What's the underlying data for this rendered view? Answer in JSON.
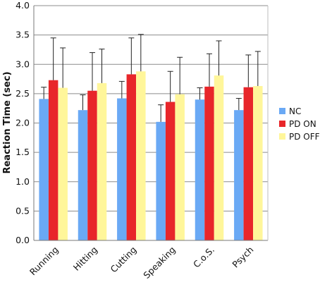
{
  "chart_data": {
    "type": "bar",
    "title": "",
    "xlabel": "",
    "ylabel": "Reaction Time (sec)",
    "ylim": [
      0,
      4.0
    ],
    "yticks": [
      "0.0",
      "0.5",
      "1.0",
      "1.5",
      "2.0",
      "2.5",
      "3.0",
      "3.5",
      "4.0"
    ],
    "grid": true,
    "legend_position": "right",
    "categories": [
      "Running",
      "Hitting",
      "Cutting",
      "Speaking",
      "C.o.S.",
      "Psych"
    ],
    "series": [
      {
        "name": "NC",
        "color": "#6aa9f5",
        "values": [
          2.41,
          2.22,
          2.42,
          2.02,
          2.4,
          2.22
        ],
        "error": [
          0.2,
          0.26,
          0.29,
          0.29,
          0.2,
          0.2
        ]
      },
      {
        "name": "PD ON",
        "color": "#e8262a",
        "values": [
          2.73,
          2.55,
          2.83,
          2.36,
          2.62,
          2.61
        ],
        "error": [
          0.72,
          0.65,
          0.62,
          0.52,
          0.56,
          0.55
        ]
      },
      {
        "name": "PD OFF",
        "color": "#fff69a",
        "values": [
          2.6,
          2.68,
          2.88,
          2.49,
          2.81,
          2.63
        ],
        "error": [
          0.68,
          0.58,
          0.63,
          0.63,
          0.59,
          0.59
        ]
      }
    ]
  }
}
